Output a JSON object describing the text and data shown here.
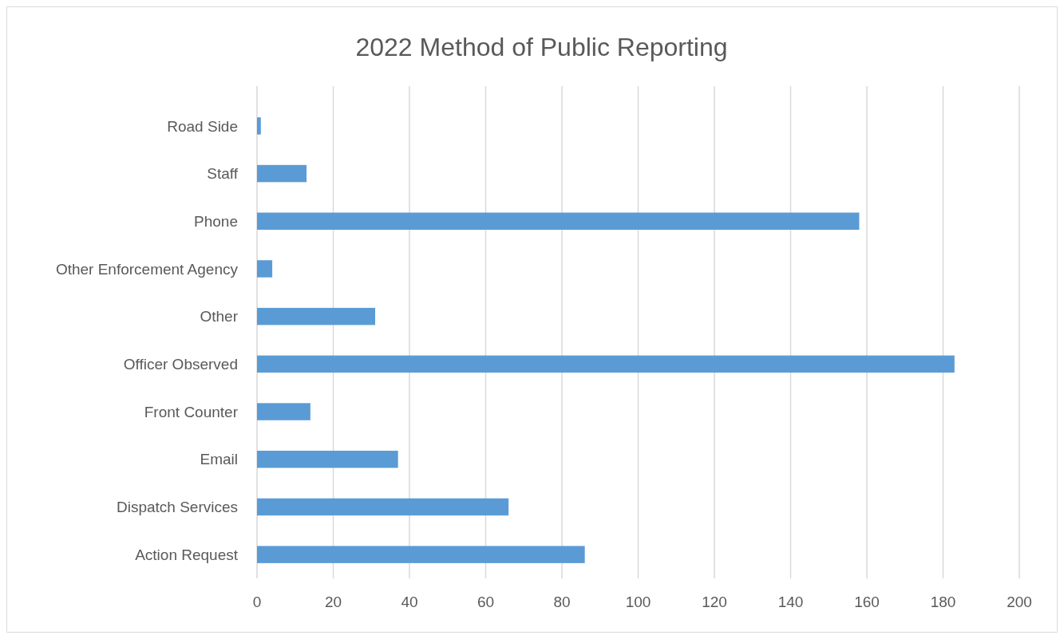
{
  "chart_data": {
    "type": "bar",
    "orientation": "horizontal",
    "title": "2022 Method of Public Reporting",
    "categories": [
      "Road Side",
      "Staff",
      "Phone",
      "Other Enforcement Agency",
      "Other",
      "Officer Observed",
      "Front Counter",
      "Email",
      "Dispatch Services",
      "Action Request"
    ],
    "values": [
      1,
      13,
      158,
      4,
      31,
      183,
      14,
      37,
      66,
      86
    ],
    "color": "#5b9bd5",
    "xlim": [
      0,
      200
    ],
    "xticks": [
      0,
      20,
      40,
      60,
      80,
      100,
      120,
      140,
      160,
      180,
      200
    ],
    "grid": "x"
  }
}
